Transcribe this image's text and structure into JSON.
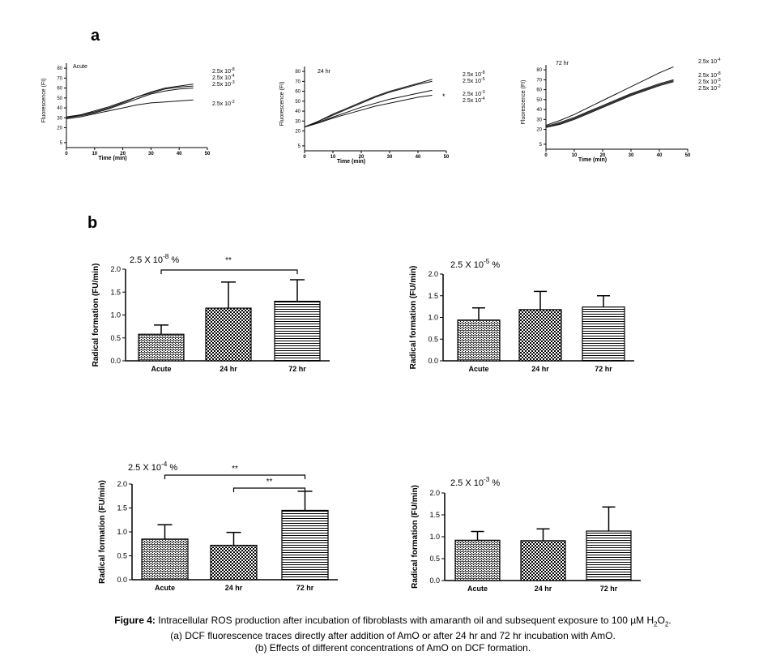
{
  "panel_labels": {
    "a": "a",
    "b": "b"
  },
  "caption": {
    "label": "Figure 4:",
    "line1": "Intracellular ROS production after incubation of fibroblasts with amaranth oil and subsequent exposure to 100 µM H",
    "line1_sub1": "2",
    "line1_mid": "O",
    "line1_sub2": "2",
    "line1_end": ".",
    "line2": "(a) DCF fluorescence traces directly after addition of AmO or after 24 hr and 72 hr incubation with AmO.",
    "line3": "(b) Effects of different concentrations of AmO on DCF formation."
  },
  "chart_data": [
    {
      "type": "line",
      "title": "Acute",
      "xlabel": "Time (min)",
      "ylabel": "Fluorescence (FI)",
      "xlim": [
        0,
        50
      ],
      "ylim": [
        0,
        85
      ],
      "xticks": [
        0,
        10,
        20,
        30,
        40,
        50
      ],
      "yticks": [
        5,
        20,
        30,
        40,
        50,
        60,
        70,
        80
      ],
      "series": [
        {
          "name": "2.5 x 10^-8",
          "x": [
            0,
            5,
            10,
            15,
            20,
            25,
            30,
            35,
            40,
            45
          ],
          "y": [
            31,
            33,
            36,
            40,
            45,
            51,
            56,
            60,
            62,
            64
          ]
        },
        {
          "name": "2.5 x 10^-4",
          "x": [
            0,
            5,
            10,
            15,
            20,
            25,
            30,
            35,
            40,
            45
          ],
          "y": [
            30,
            33,
            37,
            41,
            46,
            51,
            55,
            59,
            61,
            62
          ]
        },
        {
          "name": "2.5 x 10^-3",
          "x": [
            0,
            5,
            10,
            15,
            20,
            25,
            30,
            35,
            40,
            45
          ],
          "y": [
            30,
            32,
            35,
            39,
            44,
            49,
            54,
            57,
            59,
            60
          ]
        },
        {
          "name": "2.5 x 10^-2",
          "x": [
            0,
            5,
            10,
            15,
            20,
            25,
            30,
            35,
            40,
            45
          ],
          "y": [
            29,
            31,
            34,
            37,
            40,
            43,
            45,
            46,
            47,
            48
          ]
        }
      ]
    },
    {
      "type": "line",
      "title": "24 hr",
      "xlabel": "Time (min)",
      "ylabel": "Fluorescence (FI)",
      "xlim": [
        0,
        50
      ],
      "ylim": [
        0,
        85
      ],
      "xticks": [
        0,
        10,
        20,
        30,
        40,
        50
      ],
      "yticks": [
        5,
        20,
        30,
        40,
        50,
        60,
        70,
        80
      ],
      "annotation": "*",
      "series": [
        {
          "name": "2.5 x 10^-8",
          "x": [
            0,
            5,
            10,
            15,
            20,
            25,
            30,
            35,
            40,
            45
          ],
          "y": [
            24,
            30,
            37,
            43,
            49,
            55,
            60,
            64,
            68,
            72
          ]
        },
        {
          "name": "2.5 x 10^-5",
          "x": [
            0,
            5,
            10,
            15,
            20,
            25,
            30,
            35,
            40,
            45
          ],
          "y": [
            24,
            30,
            36,
            42,
            48,
            54,
            59,
            63,
            67,
            70
          ]
        },
        {
          "name": "2.5 x 10^-3",
          "x": [
            0,
            5,
            10,
            15,
            20,
            25,
            30,
            35,
            40,
            45
          ],
          "y": [
            24,
            29,
            34,
            39,
            44,
            48,
            52,
            55,
            58,
            61
          ]
        },
        {
          "name": "2.5 x 10^-4",
          "x": [
            0,
            5,
            10,
            15,
            20,
            25,
            30,
            35,
            40,
            45
          ],
          "y": [
            24,
            28,
            33,
            37,
            41,
            45,
            48,
            51,
            54,
            56
          ]
        }
      ]
    },
    {
      "type": "line",
      "title": "72 hr",
      "xlabel": "Time (min)",
      "ylabel": "Fluorescence (FI)",
      "xlim": [
        0,
        50
      ],
      "ylim": [
        0,
        85
      ],
      "xticks": [
        0,
        10,
        20,
        30,
        40,
        50
      ],
      "yticks": [
        5,
        20,
        30,
        40,
        50,
        60,
        70,
        80
      ],
      "series": [
        {
          "name": "2.5 x 10^-4",
          "x": [
            0,
            5,
            10,
            15,
            20,
            25,
            30,
            35,
            40,
            45
          ],
          "y": [
            24,
            29,
            35,
            42,
            49,
            56,
            63,
            70,
            77,
            83
          ]
        },
        {
          "name": "2.5 x 10^-8",
          "x": [
            0,
            5,
            10,
            15,
            20,
            25,
            30,
            35,
            40,
            45
          ],
          "y": [
            23,
            27,
            32,
            38,
            44,
            50,
            56,
            61,
            66,
            70
          ]
        },
        {
          "name": "2.5 x 10^-3",
          "x": [
            0,
            5,
            10,
            15,
            20,
            25,
            30,
            35,
            40,
            45
          ],
          "y": [
            22,
            26,
            31,
            37,
            43,
            49,
            55,
            60,
            65,
            69
          ]
        },
        {
          "name": "2.5 x 10^-2",
          "x": [
            0,
            5,
            10,
            15,
            20,
            25,
            30,
            35,
            40,
            45
          ],
          "y": [
            22,
            25,
            30,
            36,
            42,
            48,
            54,
            59,
            64,
            68
          ]
        }
      ]
    },
    {
      "type": "bar",
      "title": "2.5 X 10^-8 %",
      "ylabel": "Radical formation (FU/min)",
      "ylim": [
        0,
        2.0
      ],
      "yticks": [
        "0.0",
        "0.5",
        "1.0",
        "1.5",
        "2.0"
      ],
      "categories": [
        "Acute",
        "24 hr",
        "72 hr"
      ],
      "values": [
        0.58,
        1.15,
        1.3
      ],
      "errors": [
        0.2,
        0.57,
        0.47
      ],
      "significance": [
        {
          "from": 0,
          "to": 2,
          "label": "**"
        }
      ]
    },
    {
      "type": "bar",
      "title": "2.5 X 10^-5 %",
      "ylabel": "Radical formation (FU/min)",
      "ylim": [
        0,
        2.0
      ],
      "yticks": [
        "0.0",
        "0.5",
        "1.0",
        "1.5",
        "2.0"
      ],
      "categories": [
        "Acute",
        "24 hr",
        "72 hr"
      ],
      "values": [
        0.94,
        1.18,
        1.24
      ],
      "errors": [
        0.28,
        0.42,
        0.26
      ],
      "significance": []
    },
    {
      "type": "bar",
      "title": "2.5 X 10^-4 %",
      "ylabel": "Radical formation (FU/min)",
      "ylim": [
        0,
        2.0
      ],
      "yticks": [
        "0.0",
        "0.5",
        "1.0",
        "1.5",
        "2.0"
      ],
      "categories": [
        "Acute",
        "24 hr",
        "72 hr"
      ],
      "values": [
        0.85,
        0.72,
        1.45
      ],
      "errors": [
        0.3,
        0.27,
        0.4
      ],
      "significance": [
        {
          "from": 0,
          "to": 2,
          "label": "**"
        },
        {
          "from": 1,
          "to": 2,
          "label": "**"
        }
      ]
    },
    {
      "type": "bar",
      "title": "2.5 X 10^-3 %",
      "ylabel": "Radical formation (FU/min)",
      "ylim": [
        0,
        2.0
      ],
      "yticks": [
        "0.0",
        "0.5",
        "1.0",
        "1.5",
        "2.0"
      ],
      "categories": [
        "Acute",
        "24 hr",
        "72 hr"
      ],
      "values": [
        0.92,
        0.91,
        1.13
      ],
      "errors": [
        0.2,
        0.27,
        0.55
      ],
      "significance": []
    }
  ]
}
